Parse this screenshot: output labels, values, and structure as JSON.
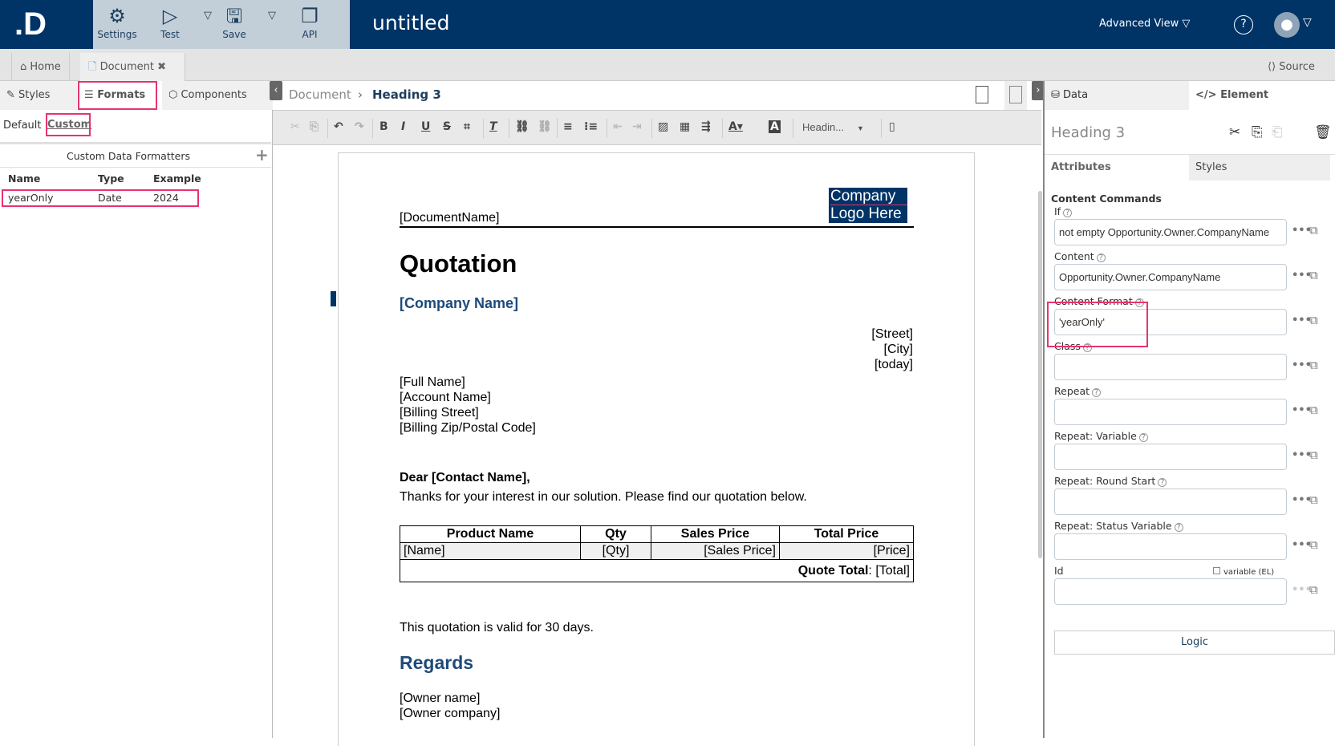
{
  "header": {
    "title": "untitled",
    "toolbar": [
      {
        "label": "Settings",
        "icon": "gear-icon"
      },
      {
        "label": "Test",
        "icon": "play-icon"
      },
      {
        "label": "Save",
        "icon": "save-icon"
      },
      {
        "label": "API",
        "icon": "copy-icon"
      }
    ],
    "advanced_view": "Advanced View ▽",
    "help": "?",
    "caret": "▽"
  },
  "tabs": {
    "home": "Home",
    "document": "Document",
    "source": "Source"
  },
  "left": {
    "tabs": [
      "Styles",
      "Formats",
      "Components"
    ],
    "subtabs": [
      "Default",
      "Custom"
    ],
    "section_title": "Custom Data Formatters",
    "columns": [
      "Name",
      "Type",
      "Example"
    ],
    "rows": [
      [
        "yearOnly",
        "Date",
        "2024"
      ]
    ]
  },
  "editor": {
    "breadcrumb": [
      "Document",
      "Heading 3"
    ],
    "style_select": "Headin...",
    "doc": {
      "document_name": "[DocumentName]",
      "logo": [
        "Company",
        "Logo Here"
      ],
      "title": "Quotation",
      "company": "[Company Name]",
      "address_right": [
        "[Street]",
        "[City]",
        "[today]"
      ],
      "address_left": [
        "[Full Name]",
        "[Account Name]",
        "[Billing Street]",
        "[Billing Zip/Postal Code]"
      ],
      "greeting": "Dear [Contact Name],",
      "intro": "Thanks for your interest in our solution. Please find our quotation below.",
      "table_headers": [
        "Product Name",
        "Qty",
        "Sales Price",
        "Total Price"
      ],
      "table_row": [
        "[Name]",
        "[Qty]",
        "[Sales Price]",
        "[Price]"
      ],
      "total_label": "Quote Total",
      "total_value": ": [Total]",
      "validity": "This quotation is valid for 30 days.",
      "regards": "Regards",
      "owner": [
        "[Owner name]",
        "[Owner company]"
      ]
    }
  },
  "right": {
    "tabs": [
      "Data",
      "Element"
    ],
    "element_title": "Heading 3",
    "subtabs": [
      "Attributes",
      "Styles"
    ],
    "section": "Content Commands",
    "fields": [
      {
        "label": "If",
        "value": "not empty Opportunity.Owner.CompanyName"
      },
      {
        "label": "Content",
        "value": "Opportunity.Owner.CompanyName"
      },
      {
        "label": "Content Format",
        "value": "'yearOnly'"
      },
      {
        "label": "Class",
        "value": ""
      },
      {
        "label": "Repeat",
        "value": ""
      },
      {
        "label": "Repeat: Variable",
        "value": ""
      },
      {
        "label": "Repeat: Round Start",
        "value": ""
      },
      {
        "label": "Repeat: Status Variable",
        "value": ""
      },
      {
        "label": "Id",
        "value": ""
      }
    ],
    "variable_checkbox": "variable (EL)",
    "logic_button": "Logic"
  },
  "colors": {
    "brand": "#003366",
    "highlight": "#e8336d"
  }
}
